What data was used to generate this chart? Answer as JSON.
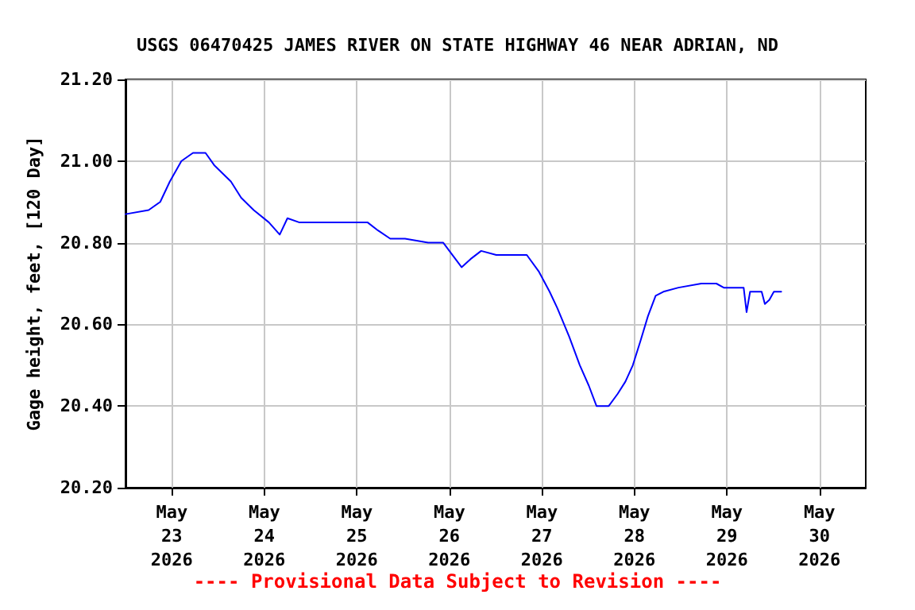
{
  "chart_data": {
    "type": "line",
    "title": "USGS 06470425 JAMES RIVER ON STATE HIGHWAY 46 NEAR ADRIAN, ND",
    "ylabel": "Gage height, feet, [120 Day]",
    "annotations": [
      "---- Provisional Data Subject to Revision ----"
    ],
    "x": [
      "2026-05-22T12:00",
      "2026-05-22T18:00",
      "2026-05-22T21:00",
      "2026-05-22T23:30",
      "2026-05-23T02:30",
      "2026-05-23T05:30",
      "2026-05-23T08:45",
      "2026-05-23T11:00",
      "2026-05-23T15:20",
      "2026-05-23T18:00",
      "2026-05-23T21:15",
      "2026-05-24T01:10",
      "2026-05-24T04:00",
      "2026-05-24T06:00",
      "2026-05-24T09:00",
      "2026-05-24T17:00",
      "2026-05-25T02:45",
      "2026-05-25T05:30",
      "2026-05-25T08:40",
      "2026-05-25T12:30",
      "2026-05-25T18:30",
      "2026-05-25T22:25",
      "2026-05-26T01:35",
      "2026-05-26T03:10",
      "2026-05-26T05:30",
      "2026-05-26T08:15",
      "2026-05-26T12:10",
      "2026-05-26T16:10",
      "2026-05-26T20:05",
      "2026-05-26T23:10",
      "2026-05-27T02:00",
      "2026-05-27T04:00",
      "2026-05-27T07:05",
      "2026-05-27T09:50",
      "2026-05-27T12:10",
      "2026-05-27T14:10",
      "2026-05-27T17:20",
      "2026-05-27T19:40",
      "2026-05-27T21:40",
      "2026-05-27T23:35",
      "2026-05-28T01:35",
      "2026-05-28T03:30",
      "2026-05-28T05:30",
      "2026-05-28T07:30",
      "2026-05-28T11:25",
      "2026-05-28T17:20",
      "2026-05-28T21:15",
      "2026-05-28T23:10",
      "2026-05-29T02:20",
      "2026-05-29T04:20",
      "2026-05-29T05:05",
      "2026-05-29T06:00",
      "2026-05-29T09:00",
      "2026-05-29T09:50",
      "2026-05-29T11:00",
      "2026-05-29T12:10",
      "2026-05-29T14:05"
    ],
    "series": [
      {
        "color": "#0000ff",
        "values": [
          20.87,
          20.88,
          20.9,
          20.95,
          21.0,
          21.02,
          21.02,
          20.99,
          20.95,
          20.91,
          20.88,
          20.85,
          20.82,
          20.86,
          20.85,
          20.85,
          20.85,
          20.83,
          20.81,
          20.81,
          20.8,
          20.8,
          20.76,
          20.74,
          20.76,
          20.78,
          20.77,
          20.77,
          20.77,
          20.73,
          20.68,
          20.64,
          20.57,
          20.5,
          20.45,
          20.4,
          20.4,
          20.43,
          20.46,
          20.5,
          20.56,
          20.62,
          20.67,
          20.68,
          20.69,
          20.7,
          20.7,
          20.69,
          20.69,
          20.69,
          20.63,
          20.68,
          20.68,
          20.65,
          20.66,
          20.68,
          20.68
        ]
      }
    ],
    "xlim": [
      "2026-05-22T12:00",
      "2026-05-30T12:00"
    ],
    "xticks": [
      {
        "value": "2026-05-23",
        "label": "May\n23\n2026"
      },
      {
        "value": "2026-05-24",
        "label": "May\n24\n2026"
      },
      {
        "value": "2026-05-25",
        "label": "May\n25\n2026"
      },
      {
        "value": "2026-05-26",
        "label": "May\n26\n2026"
      },
      {
        "value": "2026-05-27",
        "label": "May\n27\n2026"
      },
      {
        "value": "2026-05-28",
        "label": "May\n28\n2026"
      },
      {
        "value": "2026-05-29",
        "label": "May\n29\n2026"
      },
      {
        "value": "2026-05-30",
        "label": "May\n30\n2026"
      }
    ],
    "ylim": [
      20.2,
      21.2
    ],
    "yticks": [
      {
        "value": 20.2,
        "label": "20.20"
      },
      {
        "value": 20.4,
        "label": "20.40"
      },
      {
        "value": 20.6,
        "label": "20.60"
      },
      {
        "value": 20.8,
        "label": "20.80"
      },
      {
        "value": 21.0,
        "label": "21.00"
      },
      {
        "value": 21.2,
        "label": "21.20"
      }
    ],
    "grid": true,
    "marker": "none",
    "line_style": "solid"
  }
}
